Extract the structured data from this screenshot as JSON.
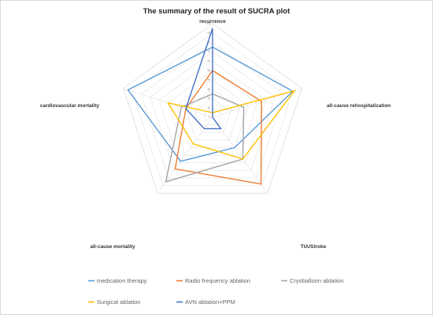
{
  "chart_data": {
    "type": "radar",
    "title": "The summary of the result of SUCRA plot",
    "axes": [
      "recurrence",
      "all-cause rehospitalization",
      "TIA/Stroke",
      "all-cause mortality",
      "cardiovascular mortality"
    ],
    "ticks": [
      "0",
      "10",
      "20",
      "30",
      "40",
      "50",
      "60",
      "70",
      "80",
      "90",
      "100"
    ],
    "range": [
      0,
      100
    ],
    "grid": true,
    "legend_position": "bottom",
    "series": [
      {
        "name": "medication therapy",
        "color": "#5b9bd5",
        "values": [
          75,
          90,
          40,
          58,
          95
        ]
      },
      {
        "name": "Radio frequency ablation",
        "color": "#ed7d31",
        "values": [
          50,
          55,
          88,
          68,
          30
        ]
      },
      {
        "name": "Cryoballoon ablation",
        "color": "#a5a5a5",
        "values": [
          25,
          35,
          55,
          85,
          35
        ]
      },
      {
        "name": "Surgical ablation",
        "color": "#ffc000",
        "values": [
          5,
          92,
          55,
          35,
          50
        ]
      },
      {
        "name": "AVN ablation+PPM",
        "color": "#4472c4",
        "values": [
          95,
          0,
          15,
          15,
          30
        ]
      }
    ]
  }
}
